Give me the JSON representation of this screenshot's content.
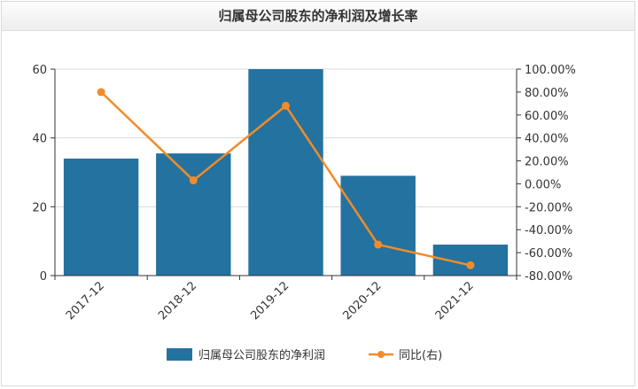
{
  "chart_data": {
    "type": "bar+line",
    "title": "归属母公司股东的净利润及增长率",
    "categories": [
      "2017-12",
      "2018-12",
      "2019-12",
      "2020-12",
      "2021-12"
    ],
    "series": [
      {
        "name": "归属母公司股东的净利润",
        "type": "bar",
        "axis": "left",
        "values": [
          34,
          35.5,
          60,
          29,
          9
        ]
      },
      {
        "name": "同比(右)",
        "type": "line",
        "axis": "right",
        "values": [
          80,
          3,
          68,
          -53,
          -71
        ]
      }
    ],
    "y_left": {
      "min": 0,
      "max": 60,
      "ticks": [
        0,
        20,
        40,
        60
      ]
    },
    "y_right": {
      "min": -80,
      "max": 100,
      "ticks": [
        -80,
        -60,
        -40,
        -20,
        0,
        20,
        40,
        60,
        80,
        100
      ],
      "tick_labels": [
        "-80.00%",
        "-60.00%",
        "-40.00%",
        "-20.00%",
        "0.00%",
        "20.00%",
        "40.00%",
        "60.00%",
        "80.00%",
        "100.00%"
      ]
    },
    "grid": true,
    "legend": "bottom-center",
    "colors": {
      "bar": "#2472a0",
      "line": "#f28c28",
      "grid": "#d9d9d9",
      "axis": "#333333"
    }
  }
}
